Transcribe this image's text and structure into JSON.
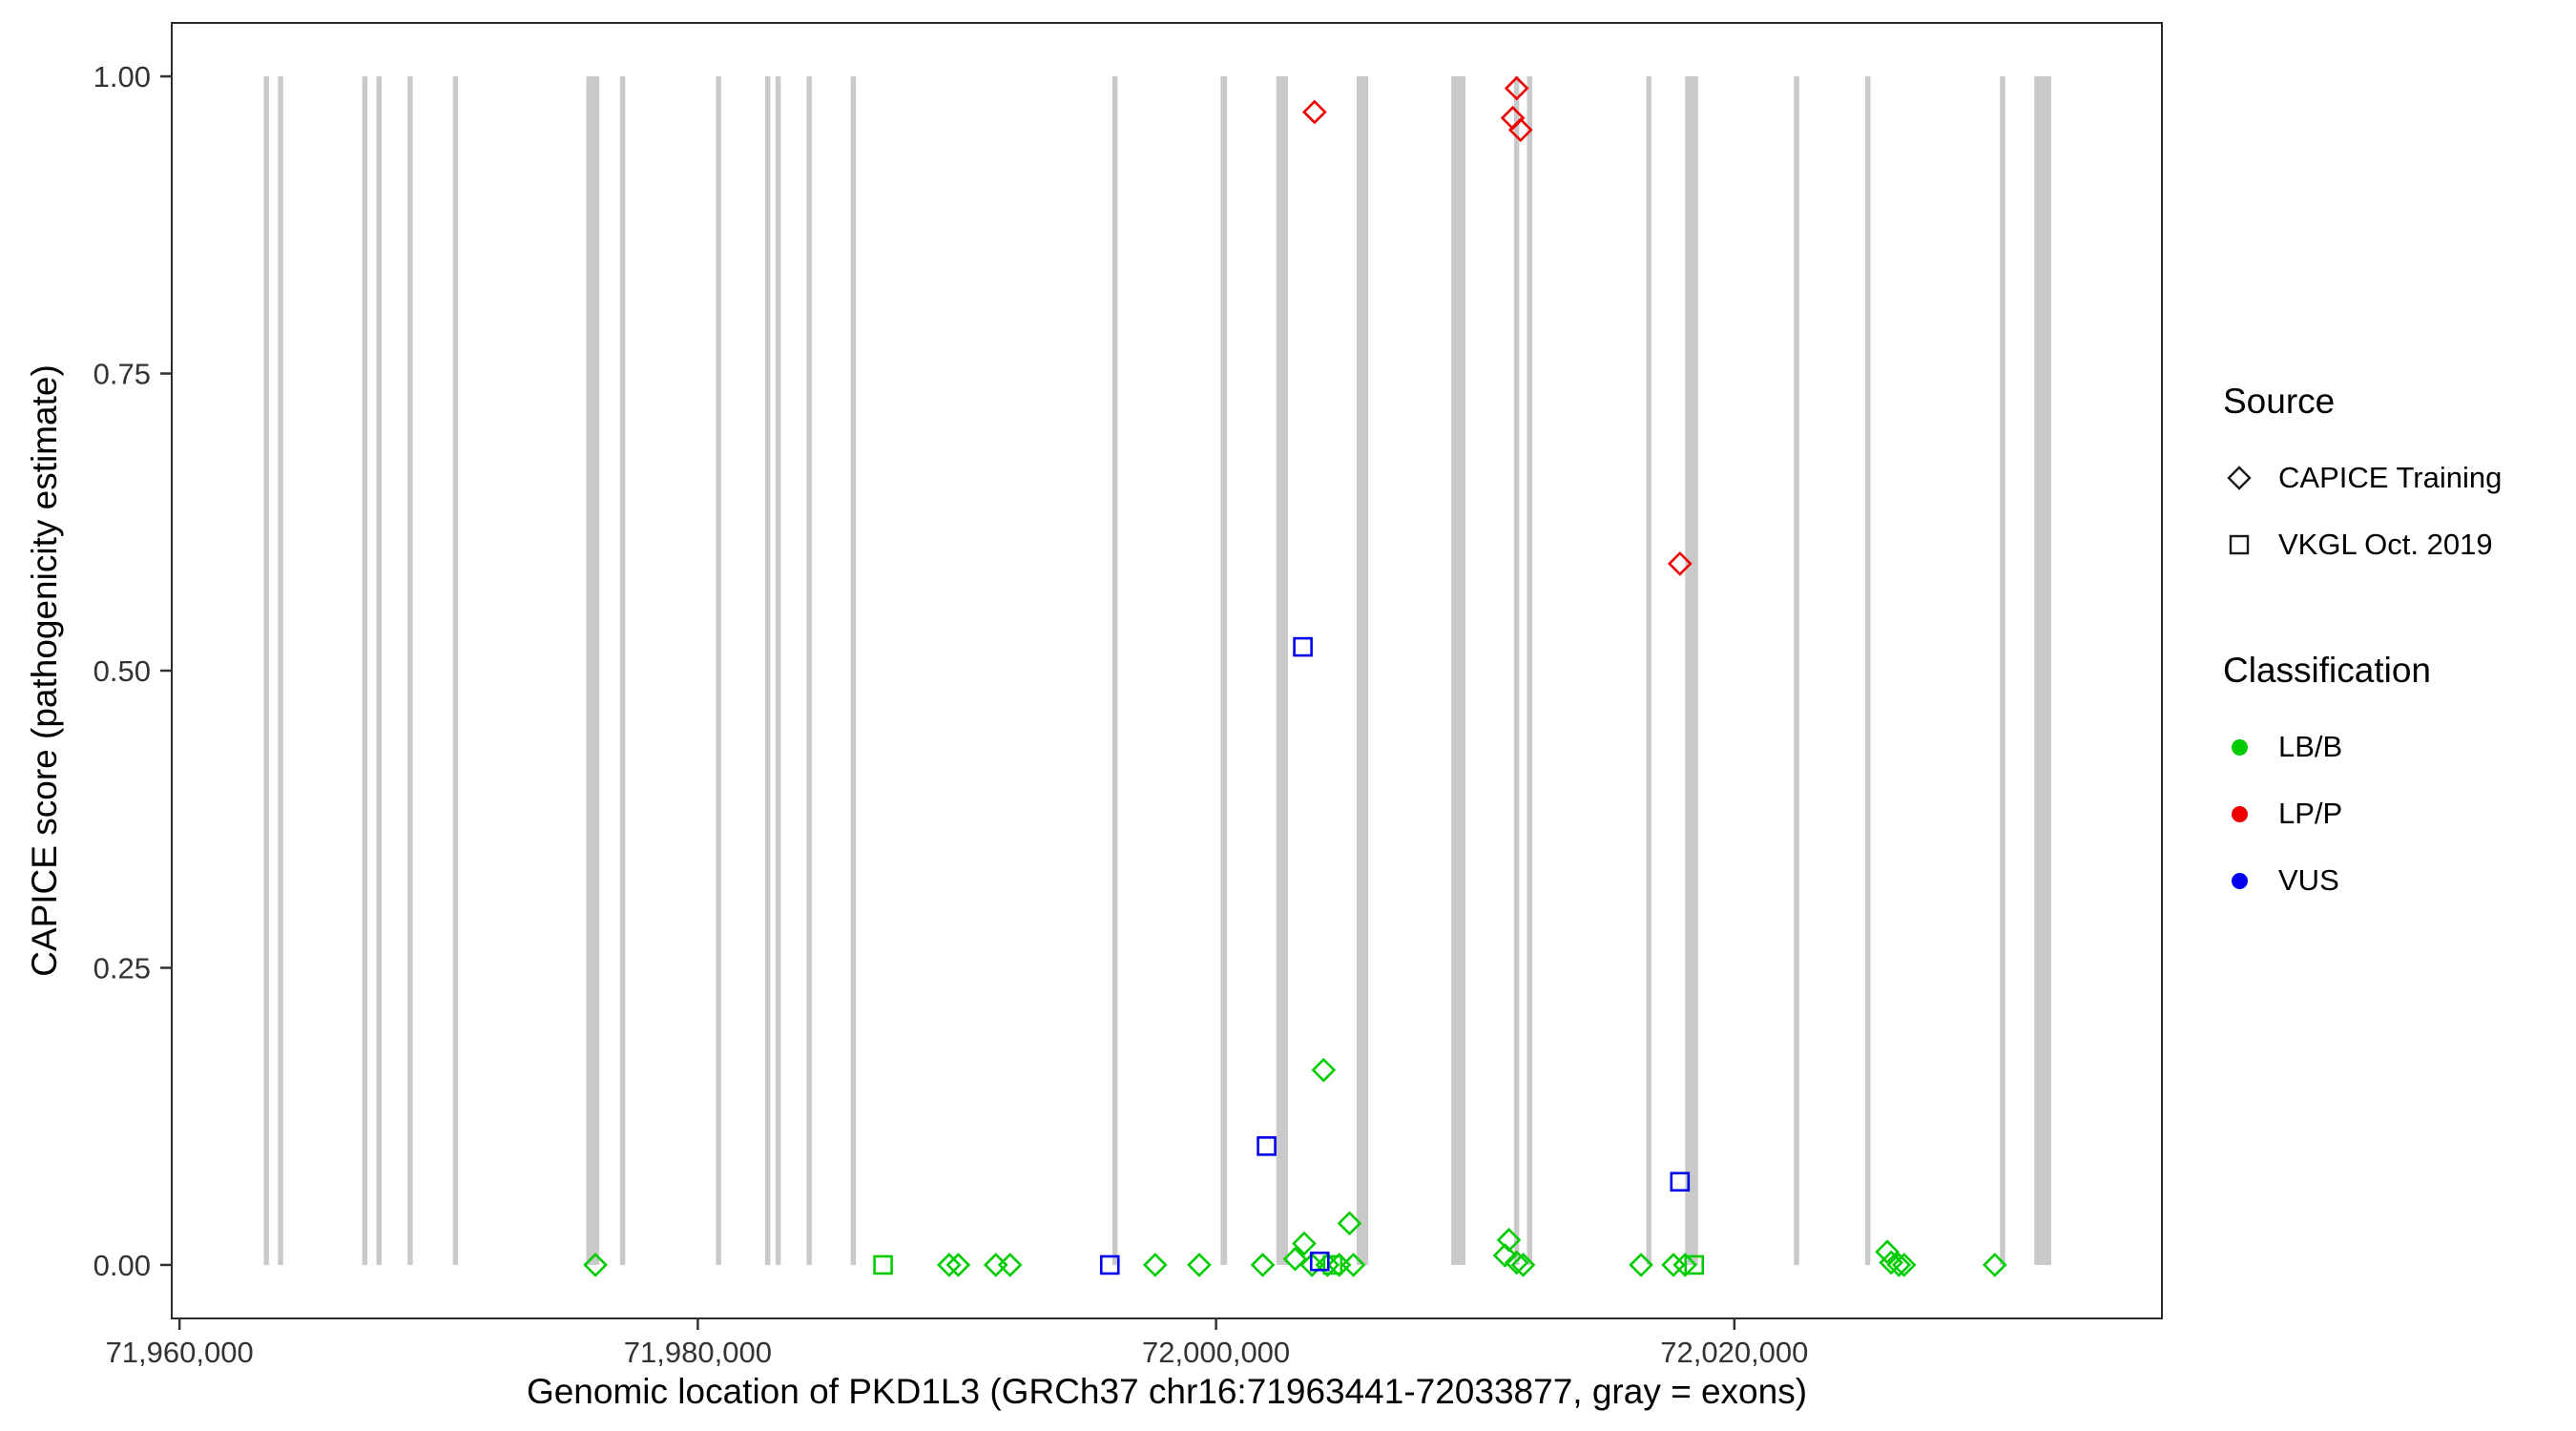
{
  "chart_data": {
    "type": "scatter",
    "title": "",
    "xlabel": "Genomic location of PKD1L3 (GRCh37 chr16:71963441-72033877, gray = exons)",
    "ylabel": "CAPICE score (pathogenicity estimate)",
    "xlim": [
      71959700,
      72036500
    ],
    "ylim": [
      -0.045,
      1.045
    ],
    "x_ticks": [
      {
        "value": 71960000,
        "label": "71,960,000"
      },
      {
        "value": 71980000,
        "label": "71,980,000"
      },
      {
        "value": 72000000,
        "label": "72,000,000"
      },
      {
        "value": 72020000,
        "label": "72,020,000"
      }
    ],
    "y_ticks": [
      {
        "value": 0.0,
        "label": "0.00"
      },
      {
        "value": 0.25,
        "label": "0.25"
      },
      {
        "value": 0.5,
        "label": "0.50"
      },
      {
        "value": 0.75,
        "label": "0.75"
      },
      {
        "value": 1.0,
        "label": "1.00"
      }
    ],
    "grid": false,
    "exon_color": "#C9C9C9",
    "exon_band": [
      0,
      1
    ],
    "exons": [
      [
        71963350,
        200
      ],
      [
        71963900,
        200
      ],
      [
        71967150,
        200
      ],
      [
        71967700,
        200
      ],
      [
        71968900,
        200
      ],
      [
        71970650,
        200
      ],
      [
        71975950,
        500
      ],
      [
        71977100,
        200
      ],
      [
        71980800,
        200
      ],
      [
        71982700,
        200
      ],
      [
        71983100,
        200
      ],
      [
        71984300,
        200
      ],
      [
        71986000,
        200
      ],
      [
        71996100,
        200
      ],
      [
        72000300,
        250
      ],
      [
        72002550,
        450
      ],
      [
        72005650,
        450
      ],
      [
        72009350,
        550
      ],
      [
        72011600,
        200
      ],
      [
        72012100,
        200
      ],
      [
        72016700,
        200
      ],
      [
        72018350,
        500
      ],
      [
        72022400,
        200
      ],
      [
        72025150,
        200
      ],
      [
        72030350,
        200
      ],
      [
        72031900,
        650
      ]
    ],
    "colors": {
      "LB/B": "#00CC00",
      "LP/P": "#EE0000",
      "VUS": "#0000EE"
    },
    "shapes": {
      "CAPICE Training": "diamond",
      "VKGL Oct. 2019": "square"
    },
    "series": [
      {
        "source": "CAPICE Training",
        "classification": "LB/B",
        "shape": "diamond",
        "color": "#00CC00",
        "points": [
          [
            71976050,
            0
          ],
          [
            71989700,
            0
          ],
          [
            71990050,
            0
          ],
          [
            71991500,
            0
          ],
          [
            71992050,
            0
          ],
          [
            71997650,
            0
          ],
          [
            71999350,
            0
          ],
          [
            72001800,
            0
          ],
          [
            72003050,
            0.005
          ],
          [
            72003400,
            0.018
          ],
          [
            72003700,
            0
          ],
          [
            72004150,
            0.164
          ],
          [
            72004300,
            0
          ],
          [
            72004750,
            0
          ],
          [
            72005150,
            0.035
          ],
          [
            72005300,
            0
          ],
          [
            72011150,
            0.008
          ],
          [
            72011300,
            0.021
          ],
          [
            72011600,
            0.002
          ],
          [
            72011850,
            0
          ],
          [
            72016400,
            0
          ],
          [
            72017650,
            0
          ],
          [
            72018100,
            0
          ],
          [
            72025900,
            0.011
          ],
          [
            72026050,
            0.002
          ],
          [
            72026350,
            0
          ],
          [
            72026550,
            0
          ],
          [
            72030050,
            0
          ]
        ]
      },
      {
        "source": "VKGL Oct. 2019",
        "classification": "LB/B",
        "shape": "square",
        "color": "#00CC00",
        "points": [
          [
            71987150,
            0
          ],
          [
            72004500,
            0
          ],
          [
            72018450,
            0
          ]
        ]
      },
      {
        "source": "VKGL Oct. 2019",
        "classification": "VUS",
        "shape": "square",
        "color": "#0000EE",
        "points": [
          [
            71995900,
            0
          ],
          [
            72001950,
            0.1
          ],
          [
            72003350,
            0.52
          ],
          [
            72004000,
            0.003
          ],
          [
            72017900,
            0.07
          ]
        ]
      },
      {
        "source": "CAPICE Training",
        "classification": "LP/P",
        "shape": "diamond",
        "color": "#EE0000",
        "points": [
          [
            72003800,
            0.97
          ],
          [
            72011450,
            0.965
          ],
          [
            72011600,
            0.99
          ],
          [
            72011750,
            0.955
          ],
          [
            72017900,
            0.59
          ]
        ]
      }
    ]
  },
  "legend": {
    "source": {
      "title": "Source",
      "items": [
        {
          "label": "CAPICE Training",
          "marker": "diamond"
        },
        {
          "label": "VKGL Oct. 2019",
          "marker": "square"
        }
      ]
    },
    "classification": {
      "title": "Classification",
      "items": [
        {
          "label": "LB/B",
          "color": "#00CC00"
        },
        {
          "label": "LP/P",
          "color": "#EE0000"
        },
        {
          "label": "VUS",
          "color": "#0000EE"
        }
      ]
    }
  }
}
